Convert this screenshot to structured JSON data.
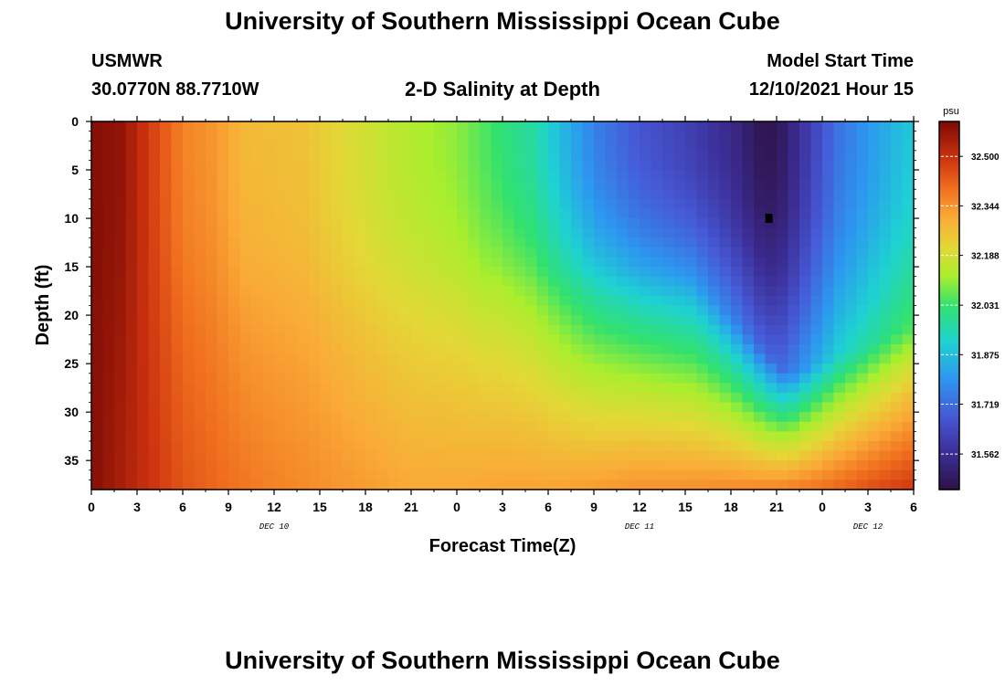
{
  "header": {
    "title": "University of Southern Mississippi Ocean Cube",
    "station": "USMWR",
    "coords": "30.0770N  88.7710W",
    "subtitle": "2-D Salinity at Depth",
    "model_start_label": "Model Start Time",
    "model_start_value": "12/10/2021 Hour 15"
  },
  "footer": {
    "title": "University of Southern Mississippi Ocean Cube"
  },
  "chart_data": {
    "type": "heatmap",
    "title": "2-D Salinity at Depth",
    "xlabel": "Forecast Time(Z)",
    "ylabel": "Depth (ft)",
    "x_tick_labels": [
      "0",
      "3",
      "6",
      "9",
      "12",
      "15",
      "18",
      "21",
      "0",
      "3",
      "6",
      "9",
      "12",
      "15",
      "18",
      "21",
      "0",
      "3",
      "6"
    ],
    "x_range_hours": [
      0,
      54
    ],
    "x_tick_step_hours": 3,
    "date_labels": [
      {
        "text": "DEC 10",
        "hour": 12
      },
      {
        "text": "DEC 11",
        "hour": 36
      },
      {
        "text": "DEC 12",
        "hour": 51
      }
    ],
    "y_tick_labels": [
      "0",
      "5",
      "10",
      "15",
      "20",
      "25",
      "30",
      "35"
    ],
    "y_tick_values": [
      0,
      5,
      10,
      15,
      20,
      25,
      30,
      35
    ],
    "y_range_ft": [
      0,
      38
    ],
    "colorbar": {
      "unit": "psu",
      "min": 31.45,
      "max": 32.61,
      "labels": [
        "32.500",
        "32.344",
        "32.188",
        "32.031",
        "31.875",
        "31.719",
        "31.562"
      ],
      "label_values": [
        32.5,
        32.344,
        32.188,
        32.031,
        31.875,
        31.719,
        31.562
      ]
    },
    "marker": {
      "hour": 44.5,
      "depth_ft": 10
    },
    "grid": {
      "cols": 72,
      "rows": 38
    },
    "field": {
      "description": "salinity (psu) vs forecast hour and depth",
      "surface_profile_points": [
        [
          0,
          32.6
        ],
        [
          2,
          32.58
        ],
        [
          4,
          32.47
        ],
        [
          6,
          32.37
        ],
        [
          8,
          32.34
        ],
        [
          10,
          32.28
        ],
        [
          14,
          32.26
        ],
        [
          17,
          32.2
        ],
        [
          20,
          32.15
        ],
        [
          24,
          32.1
        ],
        [
          27,
          32.02
        ],
        [
          29,
          31.97
        ],
        [
          31,
          31.86
        ],
        [
          33,
          31.76
        ],
        [
          36,
          31.67
        ],
        [
          39,
          31.62
        ],
        [
          42,
          31.55
        ],
        [
          44,
          31.47
        ],
        [
          45,
          31.47
        ],
        [
          47,
          31.6
        ],
        [
          49,
          31.73
        ],
        [
          51,
          31.8
        ],
        [
          53,
          31.87
        ],
        [
          54,
          31.9
        ]
      ],
      "bottom_profile_points": [
        [
          0,
          32.6
        ],
        [
          3,
          32.52
        ],
        [
          6,
          32.44
        ],
        [
          9,
          32.4
        ],
        [
          12,
          32.37
        ],
        [
          15,
          32.35
        ],
        [
          18,
          32.33
        ],
        [
          21,
          32.31
        ],
        [
          24,
          32.31
        ],
        [
          27,
          32.32
        ],
        [
          30,
          32.32
        ],
        [
          33,
          32.33
        ],
        [
          36,
          32.35
        ],
        [
          39,
          32.35
        ],
        [
          42,
          32.36
        ],
        [
          45,
          32.37
        ],
        [
          48,
          32.4
        ],
        [
          51,
          32.45
        ],
        [
          54,
          32.49
        ]
      ]
    }
  }
}
